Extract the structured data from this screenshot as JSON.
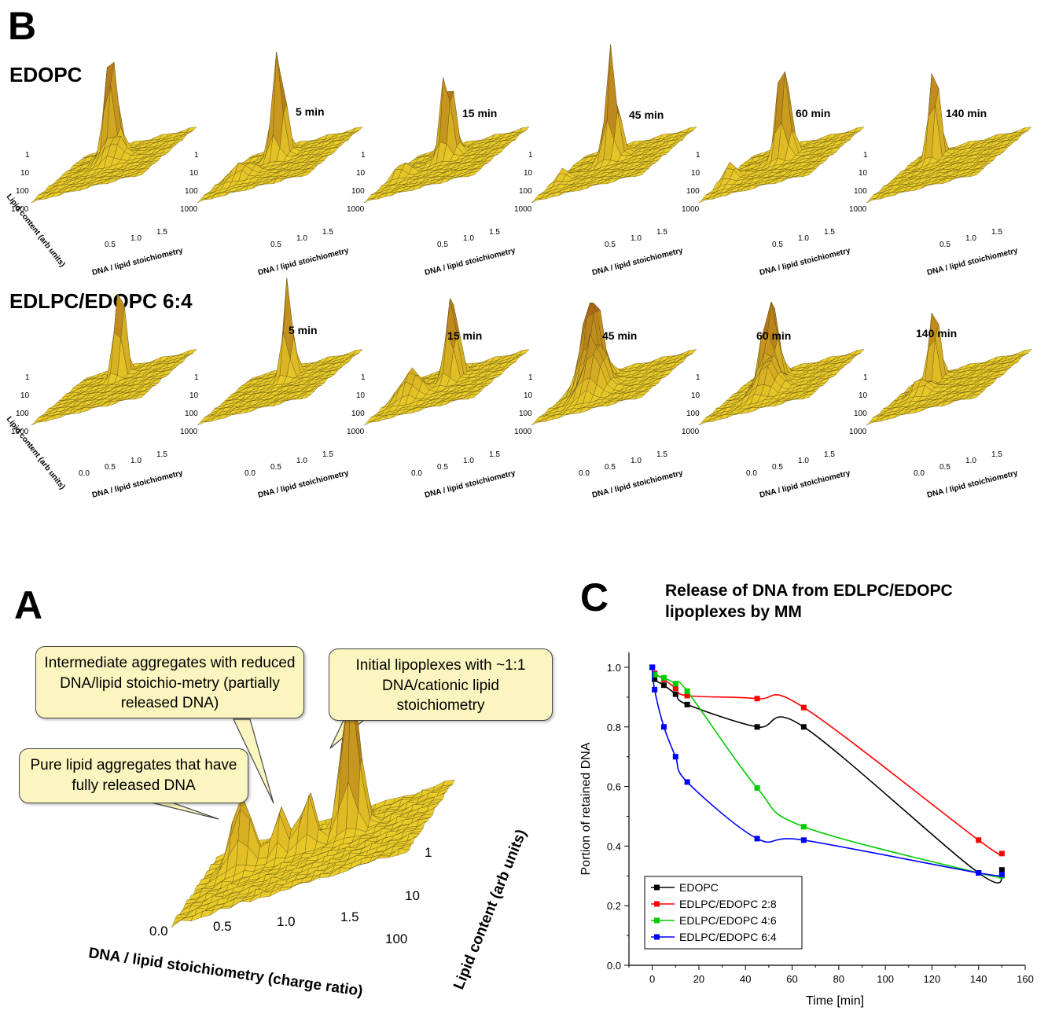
{
  "panels": {
    "b_letter": "B",
    "a_letter": "A",
    "c_letter": "C"
  },
  "panel_b": {
    "rows": [
      {
        "title": "EDOPC",
        "times": [
          "",
          "5 min",
          "15 min",
          "45 min",
          "60 min",
          "140 min"
        ]
      },
      {
        "title": "EDLPC/EDOPC  6:4",
        "times": [
          "",
          "5 min",
          "15 min",
          "45 min",
          "60 min",
          "140 min"
        ]
      }
    ],
    "axis_x_title": "DNA / lipid stoichiometry",
    "axis_y_title": "Lipid content (arb units)",
    "x_ticks": [
      "0.5",
      "1.0",
      "1.5"
    ],
    "x_ticks_row2": [
      "0.0",
      "0.5",
      "1.0",
      "1.5"
    ],
    "y_ticks": [
      "1",
      "10",
      "100",
      "1000"
    ]
  },
  "panel_a": {
    "callouts": [
      "Intermediate aggregates with reduced DNA/lipid stoichio-metry (partially released DNA)",
      "Initial lipoplexes with ~1:1 DNA/cationic lipid stoichiometry",
      "Pure lipid aggregates that have fully released DNA"
    ],
    "x_axis_title": "DNA / lipid stoichiometry (charge ratio)",
    "y_axis_title": "Lipid content (arb units)",
    "x_ticks": [
      "0.0",
      "0.5",
      "1.0",
      "1.5"
    ],
    "y_ticks": [
      "1",
      "10",
      "100"
    ]
  },
  "chart_data": {
    "type": "line",
    "title": "Release of DNA from EDLPC/EDOPC lipoplexes by MM",
    "xlabel": "Time [min]",
    "ylabel": "Portion of retained DNA",
    "xlim": [
      -10,
      160
    ],
    "ylim": [
      0.0,
      1.05
    ],
    "x_ticks": [
      0,
      20,
      40,
      60,
      80,
      100,
      120,
      140,
      160
    ],
    "y_ticks": [
      0.0,
      0.2,
      0.4,
      0.6,
      0.8,
      1.0
    ],
    "legend_position": "bottom-left",
    "series": [
      {
        "name": "EDOPC",
        "color": "#000000",
        "x": [
          0,
          1,
          5,
          10,
          15,
          45,
          65,
          140,
          150
        ],
        "y": [
          1.0,
          0.96,
          0.94,
          0.91,
          0.875,
          0.8,
          0.8,
          0.31,
          0.32
        ]
      },
      {
        "name": "EDLPC/EDOPC 2:8",
        "color": "#ff0000",
        "x": [
          0,
          1,
          5,
          10,
          15,
          45,
          65,
          140,
          150
        ],
        "y": [
          1.0,
          0.98,
          0.96,
          0.93,
          0.905,
          0.895,
          0.865,
          0.42,
          0.375
        ]
      },
      {
        "name": "EDLPC/EDOPC 4:6",
        "color": "#00cc00",
        "x": [
          0,
          1,
          5,
          10,
          15,
          45,
          65,
          140,
          150
        ],
        "y": [
          1.0,
          0.975,
          0.965,
          0.945,
          0.92,
          0.595,
          0.465,
          0.31,
          0.3
        ]
      },
      {
        "name": "EDLPC/EDOPC 6:4",
        "color": "#0000ff",
        "x": [
          0,
          1,
          5,
          10,
          15,
          45,
          65,
          140,
          150
        ],
        "y": [
          1.0,
          0.925,
          0.8,
          0.7,
          0.615,
          0.425,
          0.42,
          0.31,
          0.305
        ]
      }
    ]
  }
}
